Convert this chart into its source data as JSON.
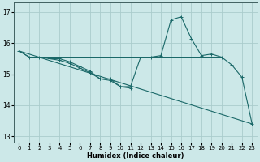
{
  "background_color": "#cce8e8",
  "plot_bg_color": "#cce8e8",
  "grid_color": "#aacccc",
  "line_color": "#1a6868",
  "xlabel": "Humidex (Indice chaleur)",
  "ylim": [
    12.8,
    17.3
  ],
  "xlim": [
    -0.5,
    23.5
  ],
  "yticks": [
    13,
    14,
    15,
    16,
    17
  ],
  "xticks": [
    0,
    1,
    2,
    3,
    4,
    5,
    6,
    7,
    8,
    9,
    10,
    11,
    12,
    13,
    14,
    15,
    16,
    17,
    18,
    19,
    20,
    21,
    22,
    23
  ],
  "series1_x": [
    0,
    1,
    2,
    3,
    4,
    5,
    6,
    7,
    8,
    9,
    10,
    11,
    12,
    13,
    14,
    15,
    16,
    17,
    18,
    19,
    20,
    21,
    22,
    23
  ],
  "series1_y": [
    15.75,
    15.55,
    15.55,
    15.5,
    15.5,
    15.4,
    15.25,
    15.1,
    14.85,
    14.85,
    14.6,
    14.6,
    15.55,
    15.55,
    15.6,
    16.75,
    16.85,
    16.15,
    15.6,
    15.65,
    15.55,
    15.3,
    14.9,
    13.4
  ],
  "series2_x": [
    0,
    1,
    2,
    3,
    4,
    5,
    6,
    7,
    8,
    9,
    10,
    11,
    12,
    13,
    14,
    17,
    18,
    19,
    20
  ],
  "series2_y": [
    15.75,
    15.55,
    15.55,
    15.55,
    15.55,
    15.55,
    15.55,
    15.55,
    15.55,
    15.55,
    15.55,
    15.55,
    15.55,
    15.55,
    15.55,
    15.55,
    15.55,
    15.55,
    15.55
  ],
  "series3_x": [
    0,
    23
  ],
  "series3_y": [
    15.75,
    13.4
  ],
  "series4_x": [
    3,
    4,
    5,
    6,
    7,
    8,
    9,
    10,
    11
  ],
  "series4_y": [
    15.5,
    15.45,
    15.35,
    15.2,
    15.05,
    14.85,
    14.8,
    14.6,
    14.55
  ],
  "xlabel_fontsize": 6.0,
  "tick_fontsize": 5.0
}
